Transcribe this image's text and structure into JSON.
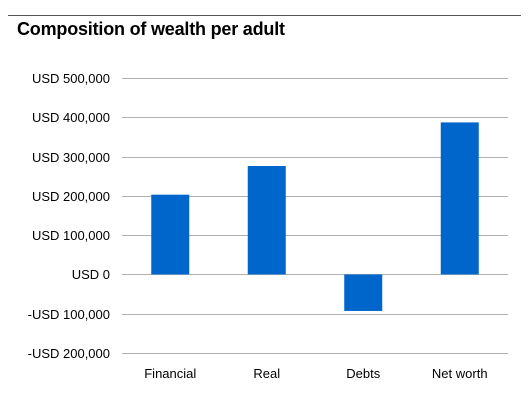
{
  "chart_data": {
    "type": "bar",
    "title": "Composition of wealth per adult",
    "xlabel": "",
    "ylabel": "",
    "categories": [
      "Financial",
      "Real",
      "Debts",
      "Net worth"
    ],
    "values": [
      203000,
      276000,
      -93000,
      387000
    ],
    "ylim": [
      -200000,
      500000
    ],
    "yticks": [
      500000,
      400000,
      300000,
      200000,
      100000,
      0,
      -100000,
      -200000
    ],
    "ytick_labels": [
      "USD 500,000",
      "USD 400,000",
      "USD 300,000",
      "USD 200,000",
      "USD 100,000",
      "USD 0",
      "-USD 100,000",
      "-USD 200,000"
    ],
    "grid": true,
    "legend": "none",
    "bar_color": "#0066cc",
    "grid_color": "#b0b0b0"
  }
}
